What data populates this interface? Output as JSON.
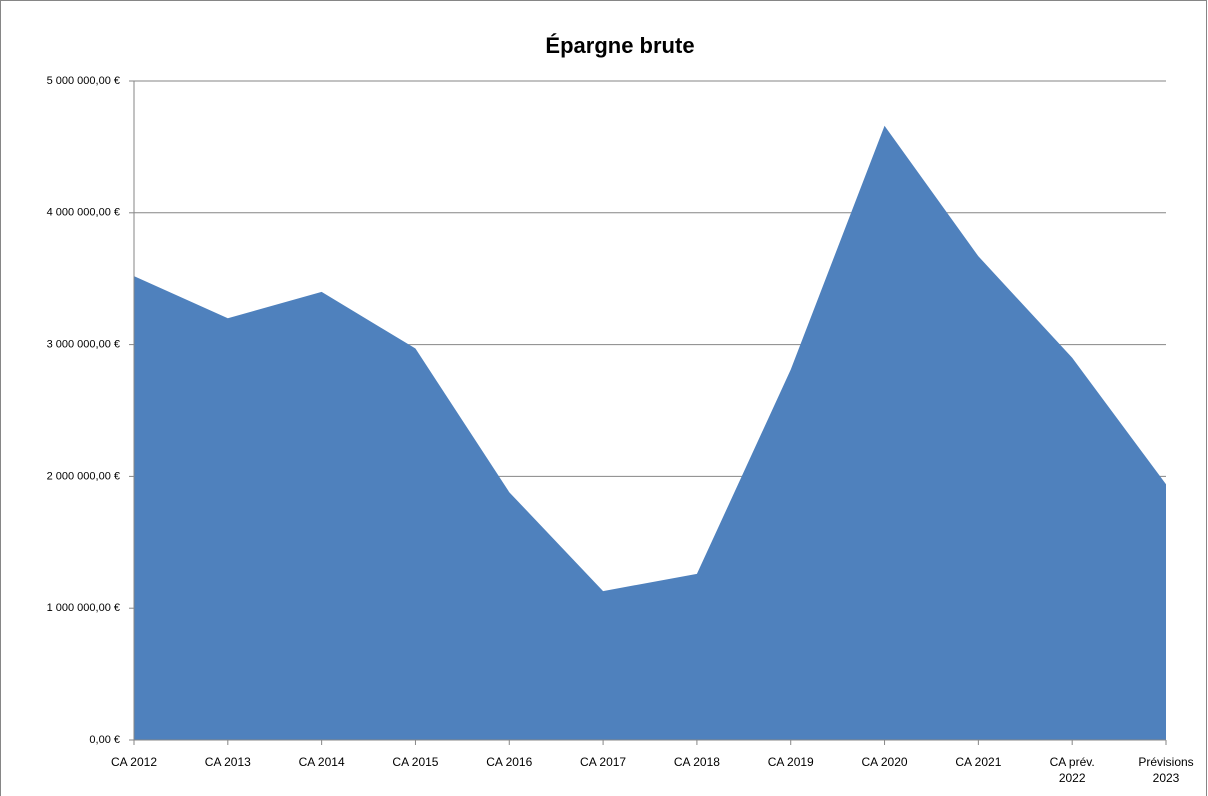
{
  "chart_data": {
    "type": "area",
    "title": "Épargne brute",
    "categories": [
      "CA 2012",
      "CA 2013",
      "CA 2014",
      "CA 2015",
      "CA 2016",
      "CA 2017",
      "CA 2018",
      "CA 2019",
      "CA 2020",
      "CA 2021",
      "CA prév. 2022",
      "Prévisions 2023"
    ],
    "values": [
      3520000,
      3200000,
      3400000,
      2970000,
      1880000,
      1130000,
      1260000,
      2810000,
      4660000,
      3670000,
      2900000,
      1940000
    ],
    "color": "#4f81bd",
    "ylim": [
      0,
      5000000
    ],
    "yticks": [
      {
        "value": 0,
        "label": "0,00 €"
      },
      {
        "value": 1000000,
        "label": "1 000 000,00 €"
      },
      {
        "value": 2000000,
        "label": "2 000 000,00 €"
      },
      {
        "value": 3000000,
        "label": "3 000 000,00 €"
      },
      {
        "value": 4000000,
        "label": "4 000 000,00 €"
      },
      {
        "value": 5000000,
        "label": "5 000 000,00 €"
      }
    ],
    "grid": true
  }
}
